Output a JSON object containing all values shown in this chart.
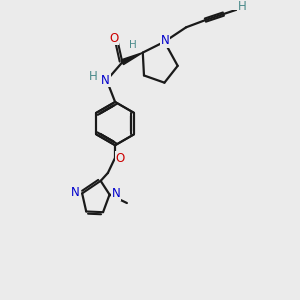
{
  "bg_color": "#ebebeb",
  "atom_colors": {
    "C": "#000000",
    "N": "#0000cc",
    "O": "#cc0000",
    "H": "#4a8a8a"
  },
  "bond_color": "#1a1a1a",
  "figsize": [
    3.0,
    3.0
  ],
  "dpi": 100,
  "xlim": [
    0,
    10
  ],
  "ylim": [
    0,
    12
  ]
}
